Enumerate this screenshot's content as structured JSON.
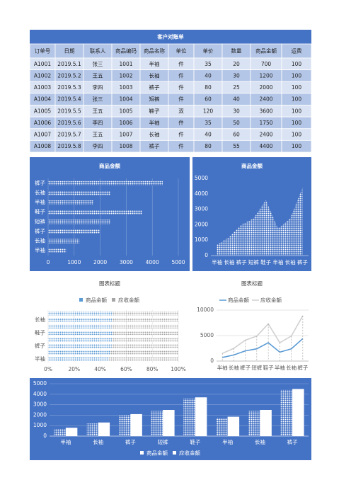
{
  "table": {
    "title": "客户对账单",
    "headers": [
      "订单号",
      "日期",
      "联系人",
      "商品编码",
      "商品名称",
      "单位",
      "单价",
      "数量",
      "商品金额",
      "运费"
    ],
    "rows": [
      [
        "A1001",
        "2019.5.1",
        "张三",
        1001,
        "半袖",
        "件",
        35,
        20,
        700,
        100
      ],
      [
        "A1002",
        "2019.5.2",
        "王五",
        1002,
        "长袖",
        "件",
        40,
        30,
        1200,
        100
      ],
      [
        "A1003",
        "2019.5.3",
        "李四",
        1003,
        "裤子",
        "件",
        80,
        25,
        2000,
        100
      ],
      [
        "A1004",
        "2019.5.4",
        "张三",
        1004,
        "短裤",
        "件",
        60,
        40,
        2400,
        100
      ],
      [
        "A1005",
        "2019.5.5",
        "王五",
        1005,
        "鞋子",
        "双",
        120,
        30,
        3600,
        100
      ],
      [
        "A1006",
        "2019.5.6",
        "李四",
        1006,
        "半袖",
        "件",
        35,
        50,
        1750,
        100
      ],
      [
        "A1007",
        "2019.5.7",
        "王五",
        1007,
        "长袖",
        "件",
        40,
        60,
        2400,
        100
      ],
      [
        "A1008",
        "2019.5.8",
        "李四",
        1008,
        "裤子",
        "件",
        80,
        55,
        4400,
        100
      ]
    ]
  },
  "chart_data": [
    {
      "type": "hbar",
      "title": "商品金额",
      "categories": [
        "半袖",
        "长袖",
        "裤子",
        "短裤",
        "鞋子",
        "半袖",
        "长袖",
        "裤子"
      ],
      "values": [
        700,
        1200,
        2000,
        2400,
        3600,
        1750,
        2400,
        4400
      ],
      "color": "#ffffff",
      "xlim": [
        0,
        5000
      ],
      "xticks": [
        0,
        1000,
        2000,
        3000,
        4000,
        5000
      ],
      "grid": true
    },
    {
      "type": "area",
      "title": "商品金额",
      "categories": [
        "半袖",
        "长袖",
        "裤子",
        "短裤",
        "鞋子",
        "半袖",
        "长袖",
        "裤子"
      ],
      "values": [
        700,
        1200,
        2000,
        2400,
        3600,
        1750,
        2400,
        4400
      ],
      "color": "#ffffff",
      "ylim": [
        0,
        5000
      ],
      "yticks": [
        0,
        1000,
        2000,
        3000,
        4000,
        5000
      ],
      "grid": false
    },
    {
      "type": "stacked-percent-hbar",
      "title": "图表标题",
      "categories": [
        "半袖",
        null,
        "裤子",
        null,
        "鞋子",
        null,
        "长袖",
        null
      ],
      "series": [
        {
          "name": "商品金额",
          "color": "#5b9bd5",
          "values": [
            700,
            1200,
            2000,
            2400,
            3600,
            1750,
            2400,
            4400
          ]
        },
        {
          "name": "应收金额",
          "color": "#a5a5a5",
          "values": [
            800,
            1300,
            2100,
            2500,
            3700,
            1850,
            2500,
            4500
          ]
        }
      ],
      "xlim": [
        0,
        100
      ],
      "xticks": [
        {
          "value": 0,
          "label": "0%"
        },
        {
          "value": 20,
          "label": "20%"
        },
        {
          "value": 40,
          "label": "40%"
        },
        {
          "value": 60,
          "label": "60%"
        },
        {
          "value": 80,
          "label": "80%"
        },
        {
          "value": 100,
          "label": "100%"
        }
      ],
      "legend": "top",
      "grid": true
    },
    {
      "type": "stacked-line",
      "title": "图表标题",
      "categories": [
        "半袖",
        "长袖",
        "裤子",
        "短裤",
        "鞋子",
        "半袖",
        "长袖",
        "裤子"
      ],
      "series": [
        {
          "name": "商品金额",
          "color": "#5b9bd5",
          "values": [
            700,
            1200,
            2000,
            2400,
            3600,
            1750,
            2400,
            4400
          ]
        },
        {
          "name": "应收金额",
          "color": "#d0d0d0",
          "values": [
            800,
            1300,
            2100,
            2500,
            3700,
            1850,
            2500,
            4500
          ]
        }
      ],
      "ylim": [
        0,
        10000
      ],
      "yticks": [
        0,
        5000,
        10000
      ],
      "legend": "top",
      "grid": true
    },
    {
      "type": "grouped-bar",
      "categories": [
        "半袖",
        "长袖",
        "裤子",
        "短裤",
        "鞋子",
        "半袖",
        "长袖",
        "裤子"
      ],
      "series": [
        {
          "name": "商品金额",
          "color": "#ffffff",
          "values": [
            700,
            1200,
            2000,
            2400,
            3600,
            1750,
            2400,
            4400
          ]
        },
        {
          "name": "应收金额",
          "color": "#ffffff",
          "values": [
            800,
            1300,
            2100,
            2500,
            3700,
            1850,
            2500,
            4500
          ]
        }
      ],
      "ylim": [
        0,
        5000
      ],
      "yticks": [
        0,
        1000,
        2000,
        3000,
        4000,
        5000
      ],
      "legend": "bottom",
      "grid": true
    }
  ]
}
